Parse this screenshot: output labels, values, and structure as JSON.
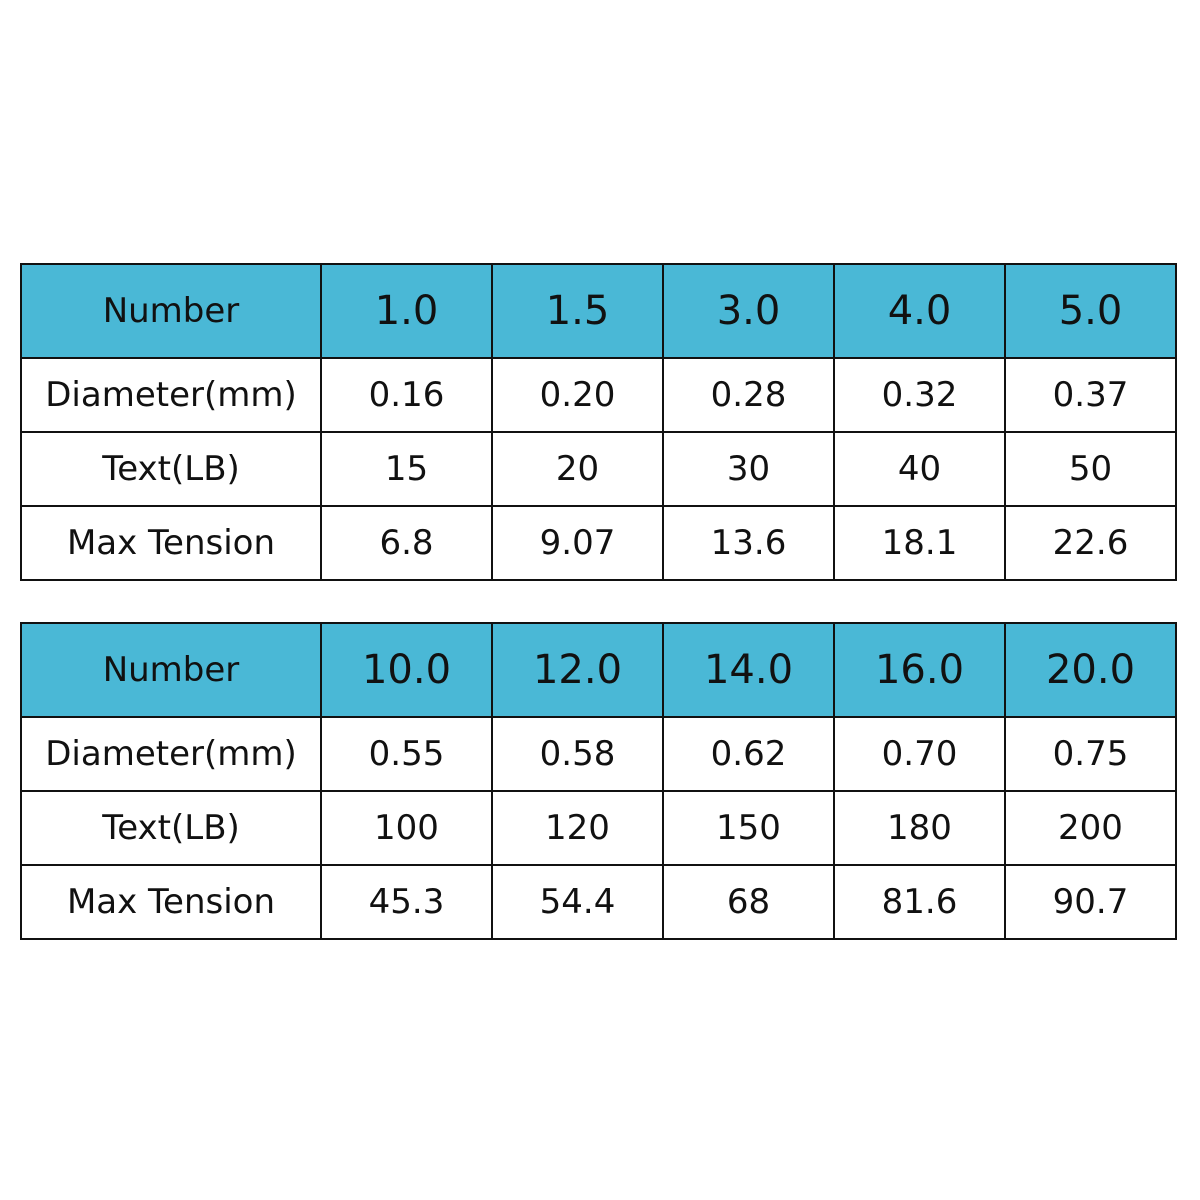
{
  "tables": [
    {
      "header": [
        "Number",
        "1.0",
        "1.5",
        "3.0",
        "4.0",
        "5.0"
      ],
      "rows": [
        [
          "Diameter(mm)",
          "0.16",
          "0.20",
          "0.28",
          "0.32",
          "0.37"
        ],
        [
          "Text(LB)",
          "15",
          "20",
          "30",
          "40",
          "50"
        ],
        [
          "Max Tension",
          "6.8",
          "9.07",
          "13.6",
          "18.1",
          "22.6"
        ]
      ]
    },
    {
      "header": [
        "Number",
        "10.0",
        "12.0",
        "14.0",
        "16.0",
        "20.0"
      ],
      "rows": [
        [
          "Diameter(mm)",
          "0.55",
          "0.58",
          "0.62",
          "0.70",
          "0.75"
        ],
        [
          "Text(LB)",
          "100",
          "120",
          "150",
          "180",
          "200"
        ],
        [
          "Max Tension",
          "45.3",
          "54.4",
          "68",
          "81.6",
          "90.7"
        ]
      ]
    }
  ]
}
